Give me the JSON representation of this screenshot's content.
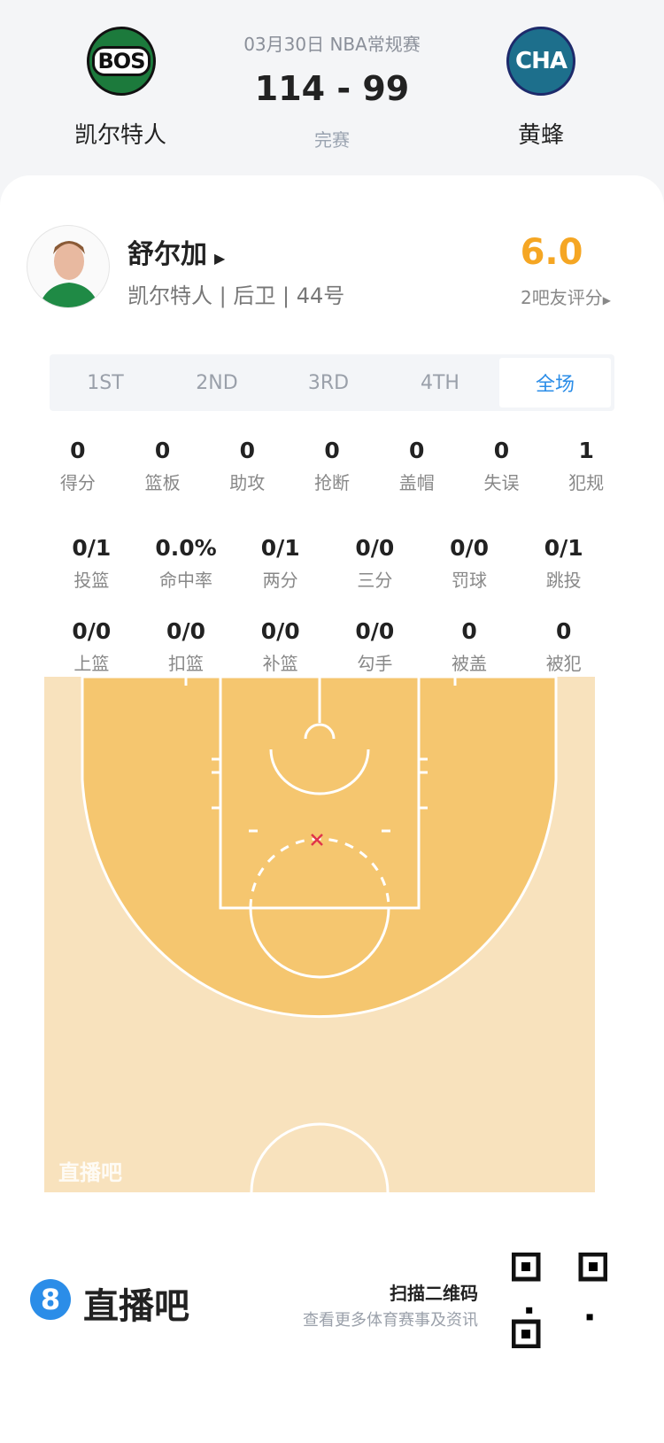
{
  "game": {
    "date_type": "03月30日 NBA常规赛",
    "score": "114 - 99",
    "status": "完赛"
  },
  "home": {
    "abbr": "BOS",
    "name": "凯尔特人",
    "color": "#1c7a3c"
  },
  "away": {
    "abbr": "CHA",
    "name": "黄蜂",
    "color": "#1d6f8c"
  },
  "player": {
    "name": "舒尔加",
    "team": "凯尔特人",
    "position": "后卫",
    "number": "44号",
    "rating": "6.0",
    "rating_label": "2吧友评分",
    "rating_color": "#f5a623"
  },
  "tabs": [
    {
      "label": "1ST"
    },
    {
      "label": "2ND"
    },
    {
      "label": "3RD"
    },
    {
      "label": "4TH"
    },
    {
      "label": "全场",
      "active": true
    }
  ],
  "stats_row1": [
    {
      "v": "0",
      "l": "得分"
    },
    {
      "v": "0",
      "l": "篮板"
    },
    {
      "v": "0",
      "l": "助攻"
    },
    {
      "v": "0",
      "l": "抢断"
    },
    {
      "v": "0",
      "l": "盖帽"
    },
    {
      "v": "0",
      "l": "失误"
    },
    {
      "v": "1",
      "l": "犯规"
    }
  ],
  "stats_row2": [
    {
      "v": "0/1",
      "l": "投篮"
    },
    {
      "v": "0.0%",
      "l": "命中率"
    },
    {
      "v": "0/1",
      "l": "两分"
    },
    {
      "v": "0/0",
      "l": "三分"
    },
    {
      "v": "0/0",
      "l": "罚球"
    },
    {
      "v": "0/1",
      "l": "跳投"
    }
  ],
  "stats_row3": [
    {
      "v": "0/0",
      "l": "上篮"
    },
    {
      "v": "0/0",
      "l": "扣篮"
    },
    {
      "v": "0/0",
      "l": "补篮"
    },
    {
      "v": "0/0",
      "l": "勾手"
    },
    {
      "v": "0",
      "l": "被盖"
    },
    {
      "v": "0",
      "l": "被犯"
    }
  ],
  "court": {
    "watermark": "直播吧",
    "shots": [
      {
        "result": "miss"
      }
    ]
  },
  "footer": {
    "brand": "直播吧",
    "brand_mark": "8",
    "scan": "扫描二维码",
    "desc": "查看更多体育赛事及资讯"
  }
}
